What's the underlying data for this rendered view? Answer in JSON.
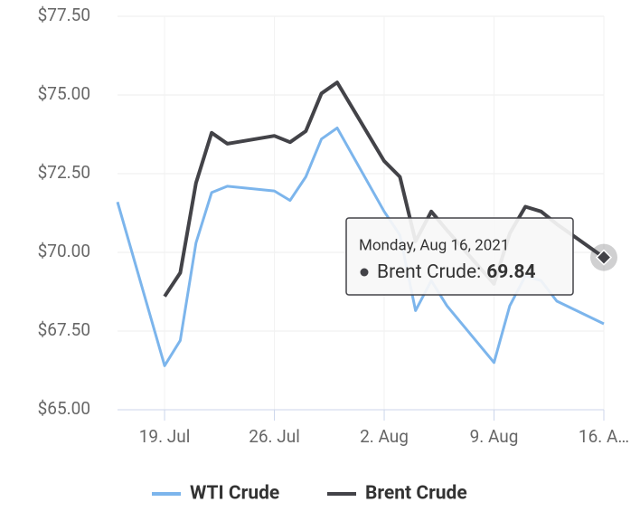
{
  "chart_data": {
    "type": "line",
    "x": [
      "2021-07-16",
      "2021-07-19",
      "2021-07-20",
      "2021-07-21",
      "2021-07-22",
      "2021-07-23",
      "2021-07-26",
      "2021-07-27",
      "2021-07-28",
      "2021-07-29",
      "2021-07-30",
      "2021-08-02",
      "2021-08-03",
      "2021-08-04",
      "2021-08-05",
      "2021-08-06",
      "2021-08-09",
      "2021-08-10",
      "2021-08-11",
      "2021-08-12",
      "2021-08-13",
      "2021-08-16"
    ],
    "series": [
      {
        "name": "WTI Crude",
        "color": "#7cb5ec",
        "values": [
          71.6,
          66.4,
          67.2,
          70.3,
          71.9,
          72.1,
          71.95,
          71.65,
          72.4,
          73.6,
          73.95,
          71.3,
          70.55,
          68.15,
          69.1,
          68.3,
          66.5,
          68.3,
          69.25,
          69.1,
          68.45,
          67.73
        ]
      },
      {
        "name": "Brent Crude",
        "color": "#434348",
        "values": [
          null,
          68.6,
          69.35,
          72.2,
          73.8,
          73.45,
          73.7,
          73.5,
          73.85,
          75.05,
          75.4,
          72.9,
          72.4,
          70.35,
          71.3,
          70.7,
          69.0,
          70.6,
          71.45,
          71.3,
          70.9,
          69.84
        ]
      }
    ],
    "xlim": [
      "2021-07-16",
      "2021-08-16"
    ],
    "xticks": [
      {
        "value": "2021-07-19",
        "label": "19. Jul"
      },
      {
        "value": "2021-07-26",
        "label": "26. Jul"
      },
      {
        "value": "2021-08-02",
        "label": "2. Aug"
      },
      {
        "value": "2021-08-09",
        "label": "9. Aug"
      },
      {
        "value": "2021-08-16",
        "label": "16. A…"
      }
    ],
    "ylim": [
      65,
      77.5
    ],
    "yticks": [
      {
        "value": 65,
        "label": "$65.00"
      },
      {
        "value": 67.5,
        "label": "$67.50"
      },
      {
        "value": 70,
        "label": "$70.00"
      },
      {
        "value": 72.5,
        "label": "$72.50"
      },
      {
        "value": 75,
        "label": "$75.00"
      },
      {
        "value": 77.5,
        "label": "$77.50"
      }
    ],
    "grid": true,
    "legend": "bottom",
    "tooltip": {
      "title": "Monday, Aug 16, 2021",
      "label": "Brent Crude:"
    }
  }
}
